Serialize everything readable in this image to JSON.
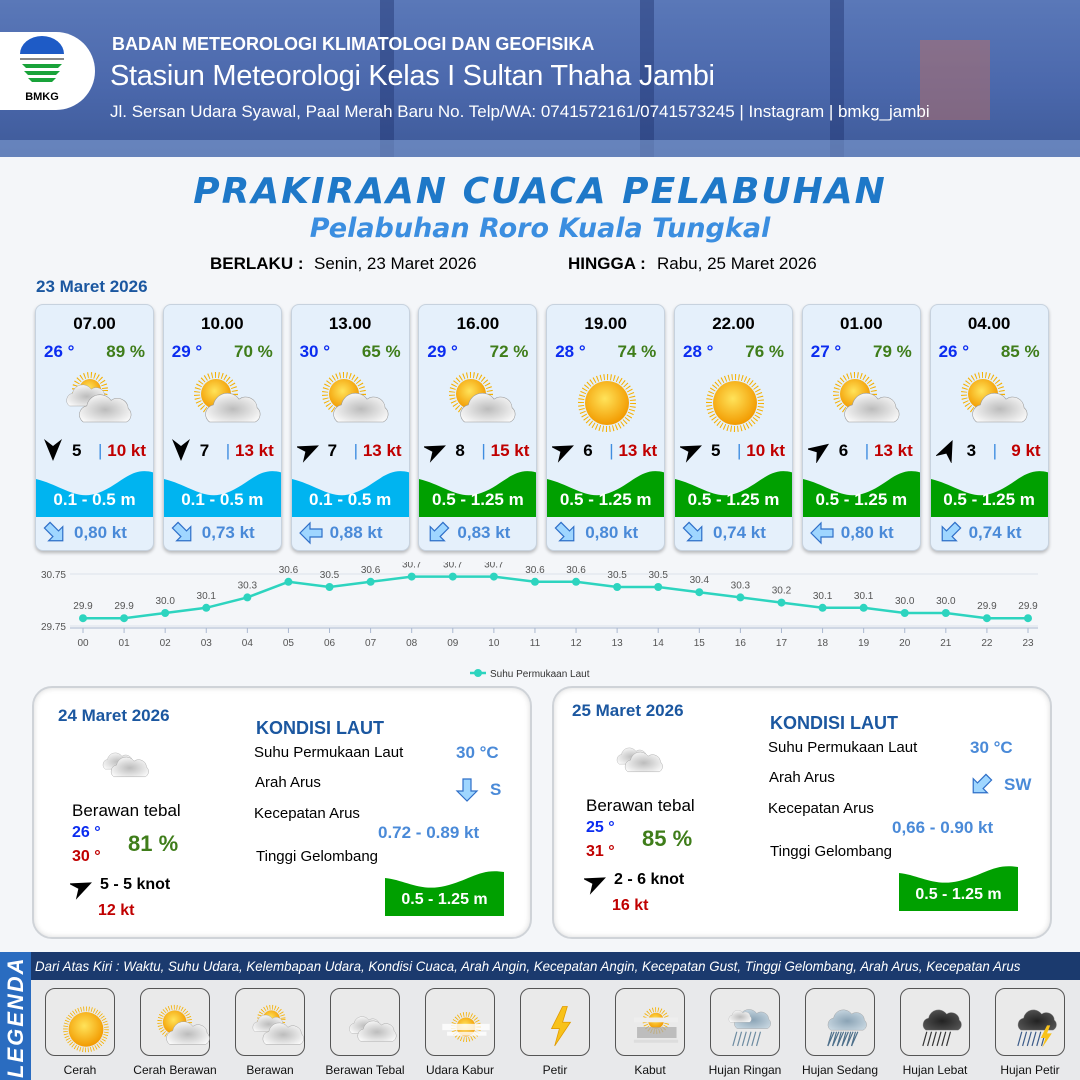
{
  "header": {
    "org": "BADAN METEOROLOGI KLIMATOLOGI DAN GEOFISIKA",
    "station": "Stasiun Meteorologi Kelas I Sultan Thaha Jambi",
    "address": "Jl. Sersan Udara Syawal, Paal Merah Baru No. Telp/WA: 0741572161/0741573245 | Instagram | bmkg_jambi",
    "logo_text": "BMKG"
  },
  "title": "PRAKIRAAN CUACA PELABUHAN",
  "subtitle": "Pelabuhan Roro Kuala Tungkal",
  "validity": {
    "from_label": "BERLAKU :",
    "from": "Senin, 23 Maret 2026",
    "to_label": "HINGGA :",
    "to": "Rabu, 25 Maret 2026"
  },
  "day1": {
    "date": "23 Maret 2026",
    "forecasts": [
      {
        "time": "07.00",
        "temp": "26 °",
        "humidity": "89 %",
        "weather": "berawan",
        "wind_dir_deg": 180,
        "wind_speed": "5",
        "gust": "10 kt",
        "wave": "0.1 - 0.5 m",
        "wave_color": "#00b4f0",
        "current_dir_deg": 135,
        "current": "0,80 kt"
      },
      {
        "time": "10.00",
        "temp": "29 °",
        "humidity": "70 %",
        "weather": "cerah-berawan",
        "wind_dir_deg": 180,
        "wind_speed": "7",
        "gust": "13 kt",
        "wave": "0.1 - 0.5 m",
        "wave_color": "#00b4f0",
        "current_dir_deg": 135,
        "current": "0,73 kt"
      },
      {
        "time": "13.00",
        "temp": "30 °",
        "humidity": "65 %",
        "weather": "cerah-berawan",
        "wind_dir_deg": 65,
        "wind_speed": "7",
        "gust": "13 kt",
        "wave": "0.1 - 0.5 m",
        "wave_color": "#00b4f0",
        "current_dir_deg": 270,
        "current": "0,88 kt"
      },
      {
        "time": "16.00",
        "temp": "29 °",
        "humidity": "72 %",
        "weather": "cerah-berawan",
        "wind_dir_deg": 65,
        "wind_speed": "8",
        "gust": "15 kt",
        "wave": "0.5 - 1.25 m",
        "wave_color": "#00a000",
        "current_dir_deg": 225,
        "current": "0,83 kt"
      },
      {
        "time": "19.00",
        "temp": "28 °",
        "humidity": "74 %",
        "weather": "cerah",
        "wind_dir_deg": 65,
        "wind_speed": "6",
        "gust": "13 kt",
        "wave": "0.5 - 1.25 m",
        "wave_color": "#00a000",
        "current_dir_deg": 135,
        "current": "0,80 kt"
      },
      {
        "time": "22.00",
        "temp": "28 °",
        "humidity": "76 %",
        "weather": "cerah",
        "wind_dir_deg": 65,
        "wind_speed": "5",
        "gust": "10 kt",
        "wave": "0.5 - 1.25 m",
        "wave_color": "#00a000",
        "current_dir_deg": 135,
        "current": "0,74 kt"
      },
      {
        "time": "01.00",
        "temp": "27 °",
        "humidity": "79 %",
        "weather": "cerah-berawan",
        "wind_dir_deg": 55,
        "wind_speed": "6",
        "gust": "13 kt",
        "wave": "0.5 - 1.25 m",
        "wave_color": "#00a000",
        "current_dir_deg": 270,
        "current": "0,80 kt"
      },
      {
        "time": "04.00",
        "temp": "26 °",
        "humidity": "85 %",
        "weather": "cerah-berawan",
        "wind_dir_deg": 25,
        "wind_speed": "3",
        "gust": "9 kt",
        "wave": "0.5 - 1.25 m",
        "wave_color": "#00a000",
        "current_dir_deg": 225,
        "current": "0,74 kt"
      }
    ]
  },
  "chart_data": {
    "type": "line",
    "categories": [
      "00",
      "01",
      "02",
      "03",
      "04",
      "05",
      "06",
      "07",
      "08",
      "09",
      "10",
      "11",
      "12",
      "13",
      "14",
      "15",
      "16",
      "17",
      "18",
      "19",
      "20",
      "21",
      "22",
      "23"
    ],
    "series": [
      {
        "name": "Suhu Permukaan Laut",
        "color": "#2dd4bf",
        "values": [
          29.9,
          29.9,
          30.0,
          30.1,
          30.3,
          30.6,
          30.5,
          30.6,
          30.7,
          30.7,
          30.7,
          30.6,
          30.6,
          30.5,
          30.5,
          30.4,
          30.3,
          30.2,
          30.1,
          30.1,
          30.0,
          30.0,
          29.9,
          29.9
        ]
      }
    ],
    "yticks": [
      "29.75",
      "30.75"
    ],
    "ylim": [
      29.75,
      30.75
    ],
    "grid": true,
    "legend": "bottom"
  },
  "outlook": [
    {
      "date": "24 Maret 2026",
      "weather": "berawan-tebal",
      "condition": "Berawan tebal",
      "temp_min": "26 °",
      "temp_max": "30 °",
      "humidity": "81 %",
      "wind_dir_deg": 65,
      "wind": "5  - 5 knot",
      "gust": "12 kt",
      "sea_title": "KONDISI LAUT",
      "sst_label": "Suhu Permukaan Laut",
      "sst": "30 °C",
      "current_dir_label": "Arah Arus",
      "current_dir": "S",
      "current_dir_deg": 180,
      "current_speed_label": "Kecepatan Arus",
      "current_speed": "0.72  - 0.89 kt",
      "wave_label": "Tinggi Gelombang",
      "wave": "0.5 - 1.25 m"
    },
    {
      "date": "25 Maret 2026",
      "weather": "berawan-tebal",
      "condition": "Berawan tebal",
      "temp_min": "25 °",
      "temp_max": "31 °",
      "humidity": "85 %",
      "wind_dir_deg": 65,
      "wind": "2  - 6 knot",
      "gust": "16 kt",
      "sea_title": "KONDISI LAUT",
      "sst_label": "Suhu Permukaan Laut",
      "sst": "30 °C",
      "current_dir_label": "Arah Arus",
      "current_dir": "SW",
      "current_dir_deg": 225,
      "current_speed_label": "Kecepatan Arus",
      "current_speed": "0,66 - 0.90 kt",
      "wave_label": "Tinggi Gelombang",
      "wave": "0.5 - 1.25 m"
    }
  ],
  "legend": {
    "title": "LEGENDA",
    "description": "Dari Atas Kiri : Waktu, Suhu Udara, Kelembapan Udara, Kondisi Cuaca, Arah Angin, Kecepatan Angin, Kecepatan Gust, Tinggi Gelombang, Arah Arus, Kecepatan Arus",
    "items": [
      {
        "icon": "cerah",
        "label": "Cerah"
      },
      {
        "icon": "cerah-berawan",
        "label": "Cerah Berawan"
      },
      {
        "icon": "berawan",
        "label": "Berawan"
      },
      {
        "icon": "berawan-tebal",
        "label": "Berawan Tebal"
      },
      {
        "icon": "udara-kabur",
        "label": "Udara Kabur"
      },
      {
        "icon": "petir",
        "label": "Petir"
      },
      {
        "icon": "kabut",
        "label": "Kabut"
      },
      {
        "icon": "hujan-ringan",
        "label": "Hujan Ringan"
      },
      {
        "icon": "hujan-sedang",
        "label": "Hujan Sedang"
      },
      {
        "icon": "hujan-lebat",
        "label": "Hujan Lebat"
      },
      {
        "icon": "hujan-petir",
        "label": "Hujan Petir"
      }
    ]
  }
}
